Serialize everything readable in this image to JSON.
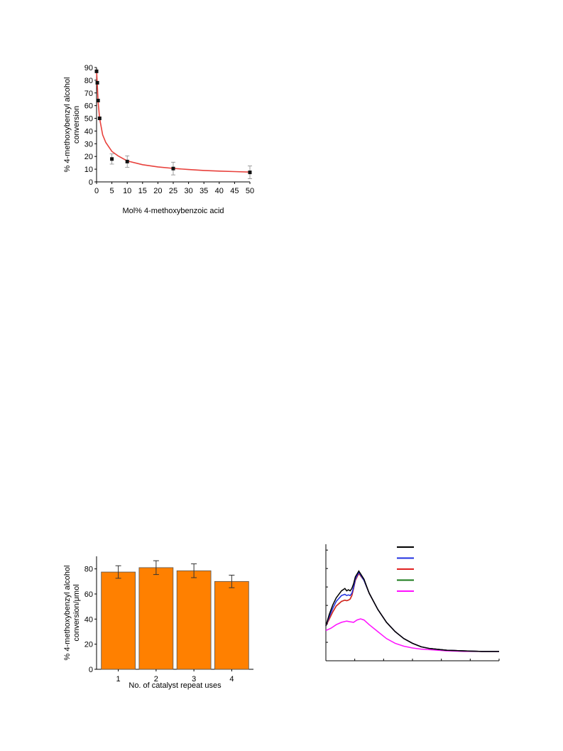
{
  "chart_data": [
    {
      "type": "scatter",
      "title": "",
      "xlabel": "Mol% 4-methoxybenzoic acid",
      "ylabel": [
        "% 4-methoxybenzyl alcohol",
        "conversion"
      ],
      "xlim": [
        0,
        50
      ],
      "ylim": [
        0,
        90
      ],
      "xticks": [
        "0",
        "5",
        "10",
        "15",
        "20",
        "25",
        "30",
        "35",
        "40",
        "45",
        "50"
      ],
      "yticks": [
        "0",
        "10",
        "20",
        "30",
        "40",
        "50",
        "60",
        "70",
        "80",
        "90"
      ],
      "grid": false,
      "colors": {
        "fit": "#e8413c",
        "points": "#111111"
      },
      "series": [
        {
          "x": [
            0,
            0.25,
            0.5,
            1,
            5,
            10,
            25,
            50
          ],
          "y": [
            87,
            78,
            64,
            50,
            18,
            16,
            10.5,
            7.5
          ],
          "err": [
            0,
            0,
            0,
            0,
            4,
            4.5,
            5,
            5
          ]
        }
      ],
      "fit": {
        "x": [
          0,
          0.25,
          0.5,
          1,
          2,
          3,
          5,
          7,
          10,
          15,
          20,
          25,
          30,
          35,
          40,
          45,
          50
        ],
        "y": [
          88,
          76,
          63,
          50,
          37,
          31,
          24,
          20.5,
          16.5,
          13.5,
          11.8,
          10.6,
          9.7,
          9,
          8.5,
          8.1,
          7.7
        ]
      }
    },
    {
      "type": "bar",
      "title": "",
      "xlabel": "No. of catalyst repeat uses",
      "ylabel": [
        "% 4-methoxybenzyl alcohol",
        "conversion/μmol"
      ],
      "categories": [
        "1",
        "2",
        "3",
        "4"
      ],
      "values": [
        77.5,
        81,
        78.5,
        70
      ],
      "errors": [
        5,
        5.5,
        5.5,
        5
      ],
      "ylim": [
        0,
        90
      ],
      "yticks": [
        "0",
        "20",
        "40",
        "60",
        "80"
      ],
      "grid": false,
      "colors": {
        "bar": "#ff8000",
        "edge": "#555555"
      }
    },
    {
      "type": "line",
      "title": "",
      "xlabel": "",
      "ylabel": "",
      "xlim": [
        0,
        1
      ],
      "ylim": [
        0,
        1
      ],
      "grid": false,
      "legend": "top-right",
      "series": [
        {
          "color": "#000000",
          "x": [
            0,
            0.02,
            0.04,
            0.06,
            0.09,
            0.11,
            0.12,
            0.13,
            0.14,
            0.15,
            0.16,
            0.17,
            0.19,
            0.22,
            0.25,
            0.3,
            0.35,
            0.4,
            0.45,
            0.5,
            0.55,
            0.6,
            0.7,
            0.8,
            0.9,
            1.0
          ],
          "y": [
            0.3,
            0.4,
            0.48,
            0.54,
            0.6,
            0.62,
            0.6,
            0.61,
            0.6,
            0.62,
            0.66,
            0.72,
            0.77,
            0.7,
            0.58,
            0.44,
            0.33,
            0.25,
            0.19,
            0.15,
            0.12,
            0.105,
            0.09,
            0.085,
            0.08,
            0.08
          ]
        },
        {
          "color": "#1f2fe0",
          "x": [
            0,
            0.02,
            0.04,
            0.06,
            0.09,
            0.11,
            0.12,
            0.13,
            0.14,
            0.15,
            0.16,
            0.17,
            0.19,
            0.22,
            0.25,
            0.3,
            0.35,
            0.4,
            0.45,
            0.5,
            0.55,
            0.6,
            0.7,
            0.8,
            0.9,
            1.0
          ],
          "y": [
            0.3,
            0.38,
            0.45,
            0.51,
            0.56,
            0.57,
            0.56,
            0.565,
            0.56,
            0.58,
            0.63,
            0.7,
            0.76,
            0.69,
            0.58,
            0.44,
            0.33,
            0.25,
            0.19,
            0.15,
            0.12,
            0.105,
            0.09,
            0.085,
            0.08,
            0.08
          ]
        },
        {
          "color": "#e02020",
          "x": [
            0,
            0.02,
            0.04,
            0.06,
            0.09,
            0.11,
            0.12,
            0.13,
            0.14,
            0.15,
            0.16,
            0.17,
            0.19,
            0.22,
            0.25,
            0.3,
            0.35,
            0.4,
            0.45,
            0.5,
            0.55,
            0.6,
            0.7,
            0.8,
            0.9,
            1.0
          ],
          "y": [
            0.3,
            0.36,
            0.42,
            0.47,
            0.51,
            0.52,
            0.515,
            0.52,
            0.53,
            0.56,
            0.62,
            0.69,
            0.75,
            0.69,
            0.58,
            0.44,
            0.33,
            0.25,
            0.19,
            0.15,
            0.12,
            0.105,
            0.09,
            0.085,
            0.08,
            0.08
          ]
        },
        {
          "color": "#1a7a1a",
          "x": [
            0,
            0.02,
            0.04,
            0.06,
            0.09,
            0.11,
            0.12,
            0.13,
            0.14,
            0.15,
            0.16,
            0.17,
            0.19,
            0.22,
            0.25,
            0.3,
            0.35,
            0.4,
            0.45,
            0.5,
            0.55,
            0.6,
            0.7,
            0.8,
            0.9,
            1.0
          ],
          "y": [
            0.3,
            0.36,
            0.42,
            0.47,
            0.51,
            0.52,
            0.515,
            0.52,
            0.53,
            0.56,
            0.62,
            0.69,
            0.75,
            0.69,
            0.58,
            0.44,
            0.33,
            0.25,
            0.19,
            0.15,
            0.12,
            0.105,
            0.09,
            0.085,
            0.08,
            0.08
          ]
        },
        {
          "color": "#ff10ff",
          "x": [
            0,
            0.03,
            0.06,
            0.09,
            0.12,
            0.14,
            0.16,
            0.18,
            0.2,
            0.22,
            0.25,
            0.3,
            0.35,
            0.4,
            0.45,
            0.5,
            0.55,
            0.6,
            0.7,
            0.8,
            0.9,
            1.0
          ],
          "y": [
            0.26,
            0.28,
            0.31,
            0.33,
            0.34,
            0.335,
            0.33,
            0.35,
            0.36,
            0.35,
            0.31,
            0.25,
            0.19,
            0.15,
            0.125,
            0.11,
            0.1,
            0.095,
            0.085,
            0.08,
            0.08,
            0.08
          ]
        }
      ]
    }
  ]
}
